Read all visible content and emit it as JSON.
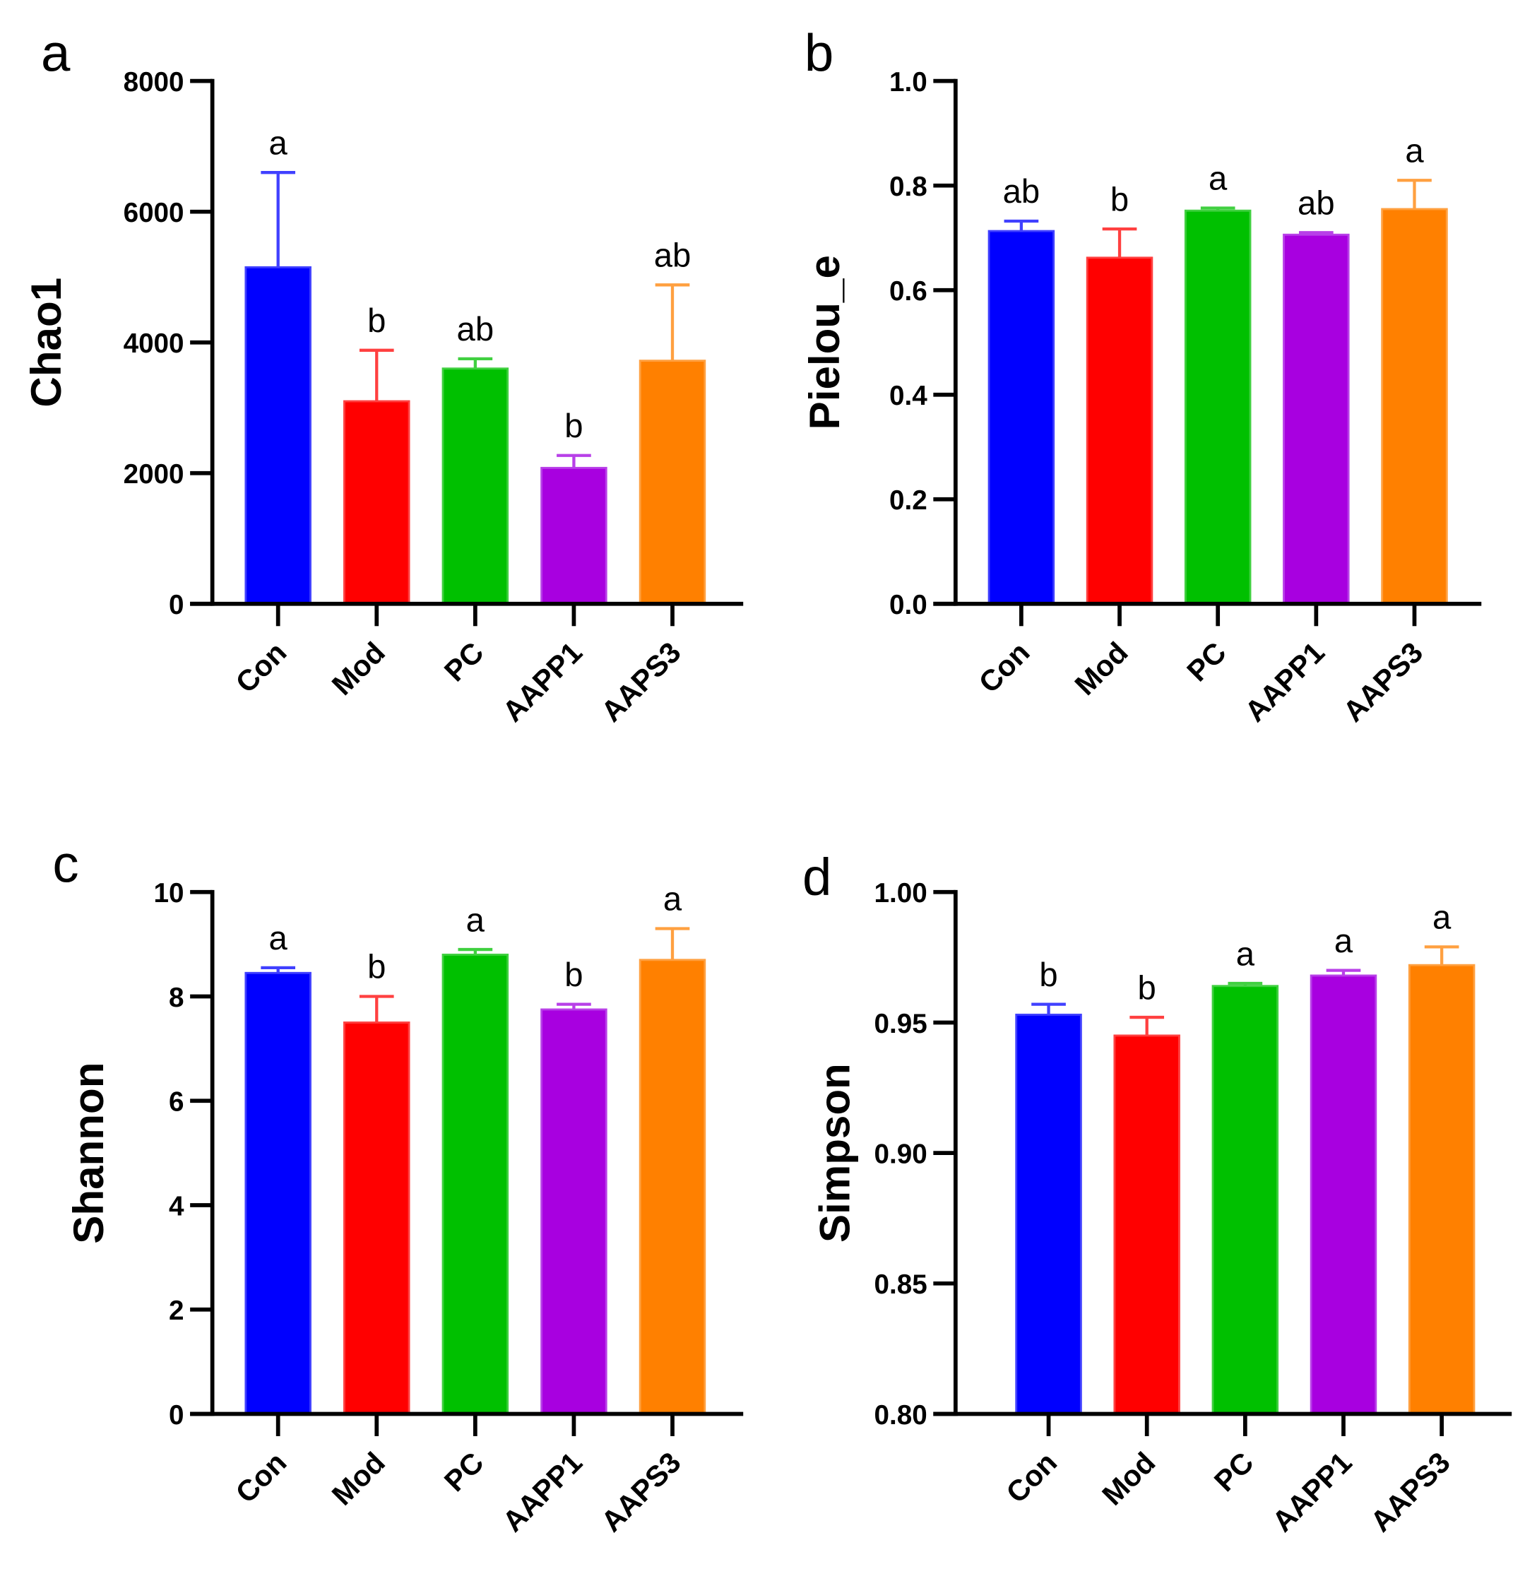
{
  "chart_data": [
    {
      "type": "bar",
      "panel_label": "a",
      "ylabel": "Chao1",
      "categories": [
        "Con",
        "Mod",
        "PC",
        "AAPP1",
        "AAPS3"
      ],
      "values": [
        5150,
        3100,
        3600,
        2080,
        3720
      ],
      "error_upper": [
        6600,
        3880,
        3750,
        2270,
        4880
      ],
      "significance": [
        "a",
        "b",
        "ab",
        "b",
        "ab"
      ],
      "ylim": [
        0,
        8000
      ],
      "yticks": [
        0,
        2000,
        4000,
        6000,
        8000
      ],
      "ytick_labels": [
        "0",
        "2000",
        "4000",
        "6000",
        "8000"
      ]
    },
    {
      "type": "bar",
      "panel_label": "b",
      "ylabel": "Pielou_e",
      "categories": [
        "Con",
        "Mod",
        "PC",
        "AAPP1",
        "AAPS3"
      ],
      "values": [
        0.713,
        0.662,
        0.752,
        0.706,
        0.755
      ],
      "error_upper": [
        0.732,
        0.717,
        0.757,
        0.71,
        0.81
      ],
      "significance": [
        "ab",
        "b",
        "a",
        "ab",
        "a"
      ],
      "ylim": [
        0,
        1.0
      ],
      "yticks": [
        0,
        0.2,
        0.4,
        0.6,
        0.8,
        1.0
      ],
      "ytick_labels": [
        "0.0",
        "0.2",
        "0.4",
        "0.6",
        "0.8",
        "1.0"
      ]
    },
    {
      "type": "bar",
      "panel_label": "c",
      "ylabel": "Shannon",
      "categories": [
        "Con",
        "Mod",
        "PC",
        "AAPP1",
        "AAPS3"
      ],
      "values": [
        8.45,
        7.5,
        8.8,
        7.75,
        8.7
      ],
      "error_upper": [
        8.55,
        8.0,
        8.9,
        7.85,
        9.3
      ],
      "significance": [
        "a",
        "b",
        "a",
        "b",
        "a"
      ],
      "ylim": [
        0,
        10
      ],
      "yticks": [
        0,
        2,
        4,
        6,
        8,
        10
      ],
      "ytick_labels": [
        "0",
        "2",
        "4",
        "6",
        "8",
        "10"
      ]
    },
    {
      "type": "bar",
      "panel_label": "d",
      "ylabel": "Simpson",
      "categories": [
        "Con",
        "Mod",
        "PC",
        "AAPP1",
        "AAPS3"
      ],
      "values": [
        0.953,
        0.945,
        0.964,
        0.968,
        0.972
      ],
      "error_upper": [
        0.957,
        0.952,
        0.965,
        0.97,
        0.979
      ],
      "significance": [
        "b",
        "b",
        "a",
        "a",
        "a"
      ],
      "ylim": [
        0.8,
        1.0
      ],
      "yticks": [
        0.8,
        0.85,
        0.9,
        0.95,
        1.0
      ],
      "ytick_labels": [
        "0.80",
        "0.85",
        "0.90",
        "0.95",
        "1.00"
      ]
    }
  ],
  "colors": [
    "#0000ff",
    "#ff0000",
    "#00c000",
    "#a800e0",
    "#ff8000"
  ],
  "error_colors": [
    "#4040ff",
    "#ff4040",
    "#40d040",
    "#b840e8",
    "#ffa040"
  ]
}
